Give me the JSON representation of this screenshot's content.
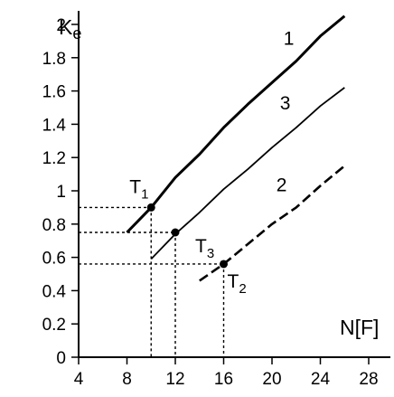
{
  "chart_data": {
    "type": "line",
    "ylabel": "Ke",
    "xlabel": "N[F]",
    "xlim": [
      4,
      28
    ],
    "ylim": [
      0,
      2
    ],
    "x_ticks": [
      "4",
      "8",
      "12",
      "16",
      "20",
      "24",
      "28"
    ],
    "y_ticks": [
      "0",
      "0.2",
      "0.4",
      "0.6",
      "0.8",
      "1",
      "1.2",
      "1.4",
      "1.6",
      "1.8",
      "2"
    ],
    "series": [
      {
        "label": "1",
        "style": "solid-thick",
        "x": [
          8,
          10,
          12,
          14,
          16,
          18,
          20,
          22,
          24,
          26
        ],
        "y": [
          0.75,
          0.9,
          1.08,
          1.22,
          1.38,
          1.52,
          1.65,
          1.78,
          1.93,
          2.05
        ]
      },
      {
        "label": "3",
        "style": "solid",
        "x": [
          10,
          12,
          14,
          16,
          18,
          20,
          22,
          24,
          26
        ],
        "y": [
          0.59,
          0.74,
          0.87,
          1.01,
          1.13,
          1.26,
          1.38,
          1.51,
          1.62
        ]
      },
      {
        "label": "2",
        "style": "dashed",
        "x": [
          14,
          16,
          18,
          20,
          22,
          24,
          26
        ],
        "y": [
          0.46,
          0.56,
          0.68,
          0.8,
          0.9,
          1.03,
          1.15
        ]
      }
    ],
    "points": [
      {
        "name": "T",
        "sub": "1",
        "x": 10,
        "y": 0.9
      },
      {
        "name": "T",
        "sub": "3",
        "x": 12,
        "y": 0.75
      },
      {
        "name": "T",
        "sub": "2",
        "x": 16,
        "y": 0.56
      }
    ]
  }
}
